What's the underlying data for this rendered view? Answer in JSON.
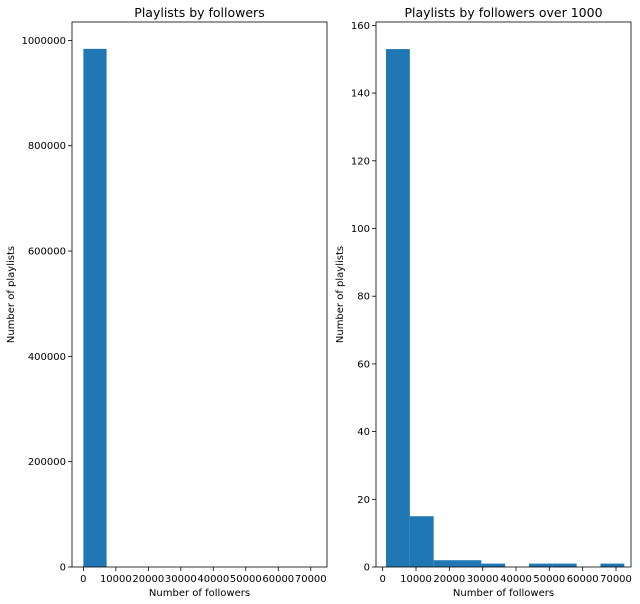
{
  "chart_data": [
    {
      "type": "bar",
      "chart_kind": "histogram",
      "title": "Playlists by followers",
      "xlabel": "Number of followers",
      "ylabel": "Number of playlists",
      "xlim": [
        -3500,
        75000
      ],
      "ylim": [
        0,
        1035000
      ],
      "xticks": [
        0,
        10000,
        20000,
        30000,
        40000,
        50000,
        60000,
        70000
      ],
      "yticks": [
        0,
        200000,
        400000,
        600000,
        800000,
        1000000
      ],
      "bins": [
        {
          "x0": 0,
          "x1": 7150,
          "count": 984000
        },
        {
          "x0": 7150,
          "x1": 14300,
          "count": 15
        },
        {
          "x0": 14300,
          "x1": 21450,
          "count": 2
        },
        {
          "x0": 21450,
          "x1": 28600,
          "count": 2
        },
        {
          "x0": 28600,
          "x1": 35750,
          "count": 1
        },
        {
          "x0": 35750,
          "x1": 42900,
          "count": 0
        },
        {
          "x0": 42900,
          "x1": 50050,
          "count": 1
        },
        {
          "x0": 50050,
          "x1": 57200,
          "count": 1
        },
        {
          "x0": 57200,
          "x1": 64350,
          "count": 0
        },
        {
          "x0": 64350,
          "x1": 71500,
          "count": 1
        }
      ],
      "color": "#1f77b4",
      "grid": false
    },
    {
      "type": "bar",
      "chart_kind": "histogram",
      "title": "Playlists by followers over 1000",
      "xlabel": "Number of followers",
      "ylabel": "Number of playlists",
      "xlim": [
        -2000,
        74500
      ],
      "ylim": [
        0,
        161
      ],
      "xticks": [
        0,
        10000,
        20000,
        30000,
        40000,
        50000,
        60000,
        70000
      ],
      "yticks": [
        0,
        20,
        40,
        60,
        80,
        100,
        120,
        140,
        160
      ],
      "bins": [
        {
          "x0": 1000,
          "x1": 8150,
          "count": 153
        },
        {
          "x0": 8150,
          "x1": 15300,
          "count": 15
        },
        {
          "x0": 15300,
          "x1": 22450,
          "count": 2
        },
        {
          "x0": 22450,
          "x1": 29600,
          "count": 2
        },
        {
          "x0": 29600,
          "x1": 36750,
          "count": 1
        },
        {
          "x0": 36750,
          "x1": 43900,
          "count": 0
        },
        {
          "x0": 43900,
          "x1": 51050,
          "count": 1
        },
        {
          "x0": 51050,
          "x1": 58200,
          "count": 1
        },
        {
          "x0": 58200,
          "x1": 65350,
          "count": 0
        },
        {
          "x0": 65350,
          "x1": 72500,
          "count": 1
        }
      ],
      "color": "#1f77b4",
      "grid": false
    }
  ]
}
